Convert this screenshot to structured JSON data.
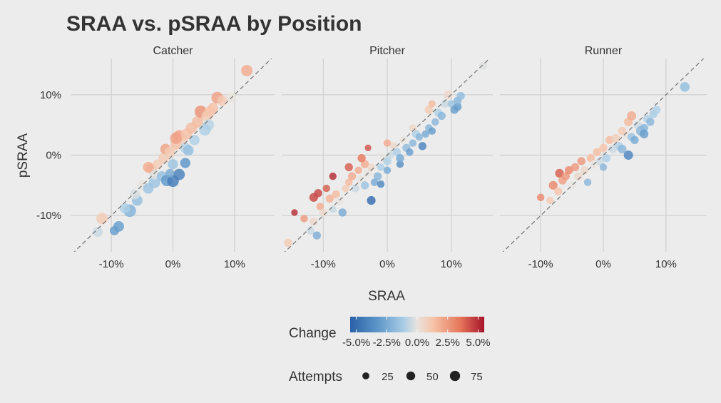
{
  "colors": {
    "background": "#ececec",
    "grid": "#cfcfcf",
    "text": "#333333",
    "diagonal": "#7a7a7a",
    "scale": [
      "#2a61a8",
      "#5c95c8",
      "#a9cde6",
      "#e8e3de",
      "#f6c2a6",
      "#e6765a",
      "#a6142b"
    ]
  },
  "chart_data": {
    "type": "scatter",
    "title": "SRAA vs. pSRAA by Position",
    "xlabel": "SRAA",
    "ylabel": "pSRAA",
    "xlim": [
      -0.165,
      0.165
    ],
    "ylim": [
      -0.16,
      0.16
    ],
    "xticks": [
      -0.1,
      0,
      0.1
    ],
    "yticks": [
      -0.1,
      0,
      0.1
    ],
    "x_tick_labels": [
      "-10%",
      "0%",
      "10%"
    ],
    "y_tick_labels": [
      "-10%",
      "0%",
      "10%"
    ],
    "reference_line": "y = x (dashed)",
    "grid": true,
    "legend": {
      "position": "bottom",
      "color_title": "Change",
      "color_range": [
        -0.055,
        0.055
      ],
      "color_tick_labels": [
        "-5.0%",
        "-2.5%",
        "0.0%",
        "2.5%",
        "5.0%"
      ],
      "color_tick_values": [
        -0.05,
        -0.025,
        0,
        0.025,
        0.05
      ],
      "size_title": "Attempts",
      "size_values": [
        25,
        50,
        75
      ],
      "size_labels": [
        "25",
        "50",
        "75"
      ]
    },
    "panels": [
      {
        "name": "Catcher",
        "points": [
          {
            "x": -0.115,
            "y": -0.105,
            "attempts": 55
          },
          {
            "x": -0.122,
            "y": -0.127,
            "attempts": 40
          },
          {
            "x": -0.095,
            "y": -0.125,
            "attempts": 30
          },
          {
            "x": -0.088,
            "y": -0.118,
            "attempts": 45
          },
          {
            "x": -0.07,
            "y": -0.092,
            "attempts": 70
          },
          {
            "x": -0.078,
            "y": -0.088,
            "attempts": 40
          },
          {
            "x": -0.058,
            "y": -0.075,
            "attempts": 45
          },
          {
            "x": -0.062,
            "y": -0.065,
            "attempts": 40
          },
          {
            "x": -0.05,
            "y": -0.05,
            "attempts": 35
          },
          {
            "x": -0.04,
            "y": -0.055,
            "attempts": 45
          },
          {
            "x": -0.03,
            "y": -0.045,
            "attempts": 55
          },
          {
            "x": -0.035,
            "y": -0.023,
            "attempts": 45
          },
          {
            "x": -0.03,
            "y": -0.032,
            "attempts": 40
          },
          {
            "x": -0.018,
            "y": -0.035,
            "attempts": 40
          },
          {
            "x": -0.01,
            "y": -0.042,
            "attempts": 55
          },
          {
            "x": 0.0,
            "y": -0.043,
            "attempts": 60
          },
          {
            "x": 0.01,
            "y": -0.032,
            "attempts": 55
          },
          {
            "x": -0.005,
            "y": -0.03,
            "attempts": 25
          },
          {
            "x": 0.02,
            "y": -0.013,
            "attempts": 40
          },
          {
            "x": -0.025,
            "y": -0.015,
            "attempts": 35
          },
          {
            "x": -0.015,
            "y": -0.005,
            "attempts": 45
          },
          {
            "x": -0.012,
            "y": 0.01,
            "attempts": 45
          },
          {
            "x": -0.005,
            "y": 0.005,
            "attempts": 45
          },
          {
            "x": 0.0,
            "y": -0.015,
            "attempts": 40
          },
          {
            "x": 0.005,
            "y": 0.018,
            "attempts": 50
          },
          {
            "x": 0.01,
            "y": 0.032,
            "attempts": 55
          },
          {
            "x": 0.015,
            "y": 0.025,
            "attempts": 45
          },
          {
            "x": 0.02,
            "y": 0.012,
            "attempts": 45
          },
          {
            "x": 0.025,
            "y": 0.008,
            "attempts": 45
          },
          {
            "x": 0.022,
            "y": 0.035,
            "attempts": 50
          },
          {
            "x": 0.03,
            "y": 0.045,
            "attempts": 50
          },
          {
            "x": 0.035,
            "y": 0.025,
            "attempts": 40
          },
          {
            "x": 0.04,
            "y": 0.055,
            "attempts": 55
          },
          {
            "x": 0.045,
            "y": 0.072,
            "attempts": 65
          },
          {
            "x": 0.055,
            "y": 0.065,
            "attempts": 45
          },
          {
            "x": 0.06,
            "y": 0.072,
            "attempts": 50
          },
          {
            "x": 0.058,
            "y": 0.05,
            "attempts": 50
          },
          {
            "x": 0.052,
            "y": 0.042,
            "attempts": 60
          },
          {
            "x": 0.065,
            "y": 0.078,
            "attempts": 45
          },
          {
            "x": 0.072,
            "y": 0.095,
            "attempts": 60
          },
          {
            "x": 0.08,
            "y": 0.09,
            "attempts": 40
          },
          {
            "x": 0.095,
            "y": 0.095,
            "attempts": 35
          },
          {
            "x": 0.12,
            "y": 0.14,
            "attempts": 55
          },
          {
            "x": 0.005,
            "y": 0.028,
            "attempts": 60
          },
          {
            "x": -0.04,
            "y": -0.02,
            "attempts": 45
          }
        ]
      },
      {
        "name": "Pitcher",
        "points": [
          {
            "x": -0.155,
            "y": -0.145,
            "attempts": 20
          },
          {
            "x": -0.145,
            "y": -0.095,
            "attempts": 10
          },
          {
            "x": -0.12,
            "y": -0.125,
            "attempts": 20
          },
          {
            "x": -0.115,
            "y": -0.11,
            "attempts": 20
          },
          {
            "x": -0.11,
            "y": -0.133,
            "attempts": 20
          },
          {
            "x": -0.115,
            "y": -0.07,
            "attempts": 25
          },
          {
            "x": -0.108,
            "y": -0.063,
            "attempts": 20
          },
          {
            "x": -0.105,
            "y": -0.085,
            "attempts": 15
          },
          {
            "x": -0.1,
            "y": -0.095,
            "attempts": 15
          },
          {
            "x": -0.095,
            "y": -0.055,
            "attempts": 15
          },
          {
            "x": -0.085,
            "y": -0.035,
            "attempts": 15
          },
          {
            "x": -0.09,
            "y": -0.072,
            "attempts": 20
          },
          {
            "x": -0.08,
            "y": -0.065,
            "attempts": 20
          },
          {
            "x": -0.085,
            "y": -0.09,
            "attempts": 15
          },
          {
            "x": -0.075,
            "y": -0.075,
            "attempts": 20
          },
          {
            "x": -0.07,
            "y": -0.095,
            "attempts": 20
          },
          {
            "x": -0.065,
            "y": -0.055,
            "attempts": 15
          },
          {
            "x": -0.06,
            "y": -0.045,
            "attempts": 15
          },
          {
            "x": -0.055,
            "y": -0.035,
            "attempts": 20
          },
          {
            "x": -0.05,
            "y": -0.055,
            "attempts": 20
          },
          {
            "x": -0.045,
            "y": -0.025,
            "attempts": 15
          },
          {
            "x": -0.04,
            "y": -0.04,
            "attempts": 20
          },
          {
            "x": -0.035,
            "y": -0.05,
            "attempts": 20
          },
          {
            "x": -0.035,
            "y": -0.015,
            "attempts": 20
          },
          {
            "x": -0.03,
            "y": 0.012,
            "attempts": 10
          },
          {
            "x": -0.03,
            "y": -0.03,
            "attempts": 20
          },
          {
            "x": -0.025,
            "y": -0.02,
            "attempts": 15
          },
          {
            "x": -0.025,
            "y": -0.075,
            "attempts": 25
          },
          {
            "x": -0.02,
            "y": -0.045,
            "attempts": 15
          },
          {
            "x": -0.015,
            "y": -0.035,
            "attempts": 20
          },
          {
            "x": -0.01,
            "y": -0.02,
            "attempts": 15
          },
          {
            "x": -0.01,
            "y": -0.048,
            "attempts": 15
          },
          {
            "x": -0.005,
            "y": -0.005,
            "attempts": 15
          },
          {
            "x": 0.0,
            "y": -0.01,
            "attempts": 20
          },
          {
            "x": 0.0,
            "y": -0.025,
            "attempts": 15
          },
          {
            "x": 0.005,
            "y": 0.0,
            "attempts": 15
          },
          {
            "x": 0.01,
            "y": 0.015,
            "attempts": 15
          },
          {
            "x": 0.015,
            "y": 0.005,
            "attempts": 20
          },
          {
            "x": 0.02,
            "y": -0.015,
            "attempts": 15
          },
          {
            "x": 0.02,
            "y": -0.005,
            "attempts": 20
          },
          {
            "x": 0.025,
            "y": 0.025,
            "attempts": 15
          },
          {
            "x": 0.03,
            "y": 0.012,
            "attempts": 20
          },
          {
            "x": 0.035,
            "y": 0.005,
            "attempts": 15
          },
          {
            "x": 0.04,
            "y": 0.02,
            "attempts": 15
          },
          {
            "x": 0.045,
            "y": 0.035,
            "attempts": 20
          },
          {
            "x": 0.05,
            "y": 0.03,
            "attempts": 15
          },
          {
            "x": 0.055,
            "y": 0.015,
            "attempts": 20
          },
          {
            "x": 0.06,
            "y": 0.035,
            "attempts": 15
          },
          {
            "x": 0.065,
            "y": 0.045,
            "attempts": 15
          },
          {
            "x": 0.065,
            "y": 0.075,
            "attempts": 20
          },
          {
            "x": 0.07,
            "y": 0.04,
            "attempts": 15
          },
          {
            "x": 0.075,
            "y": 0.055,
            "attempts": 15
          },
          {
            "x": 0.08,
            "y": 0.07,
            "attempts": 20
          },
          {
            "x": 0.085,
            "y": 0.065,
            "attempts": 20
          },
          {
            "x": 0.09,
            "y": 0.085,
            "attempts": 20
          },
          {
            "x": 0.095,
            "y": 0.1,
            "attempts": 25
          },
          {
            "x": 0.1,
            "y": 0.085,
            "attempts": 15
          },
          {
            "x": 0.105,
            "y": 0.075,
            "attempts": 20
          },
          {
            "x": 0.11,
            "y": 0.08,
            "attempts": 20
          },
          {
            "x": 0.11,
            "y": 0.09,
            "attempts": 20
          },
          {
            "x": 0.115,
            "y": 0.098,
            "attempts": 20
          },
          {
            "x": 0.15,
            "y": 0.148,
            "attempts": 20
          },
          {
            "x": -0.04,
            "y": -0.005,
            "attempts": 20
          },
          {
            "x": -0.06,
            "y": -0.02,
            "attempts": 20
          },
          {
            "x": 0.0,
            "y": 0.02,
            "attempts": 15
          },
          {
            "x": 0.04,
            "y": 0.045,
            "attempts": 15
          },
          {
            "x": 0.07,
            "y": 0.085,
            "attempts": 15
          },
          {
            "x": -0.13,
            "y": -0.105,
            "attempts": 15
          }
        ]
      },
      {
        "name": "Runner",
        "points": [
          {
            "x": -0.1,
            "y": -0.07,
            "attempts": 15
          },
          {
            "x": -0.085,
            "y": -0.075,
            "attempts": 15
          },
          {
            "x": -0.08,
            "y": -0.05,
            "attempts": 25
          },
          {
            "x": -0.072,
            "y": -0.06,
            "attempts": 20
          },
          {
            "x": -0.07,
            "y": -0.03,
            "attempts": 25
          },
          {
            "x": -0.065,
            "y": -0.042,
            "attempts": 20
          },
          {
            "x": -0.06,
            "y": -0.035,
            "attempts": 20
          },
          {
            "x": -0.055,
            "y": -0.025,
            "attempts": 20
          },
          {
            "x": -0.05,
            "y": -0.05,
            "attempts": 20
          },
          {
            "x": -0.045,
            "y": -0.02,
            "attempts": 20
          },
          {
            "x": -0.04,
            "y": -0.035,
            "attempts": 20
          },
          {
            "x": -0.035,
            "y": -0.01,
            "attempts": 20
          },
          {
            "x": -0.03,
            "y": -0.025,
            "attempts": 20
          },
          {
            "x": -0.025,
            "y": -0.045,
            "attempts": 15
          },
          {
            "x": -0.02,
            "y": -0.005,
            "attempts": 20
          },
          {
            "x": -0.015,
            "y": -0.015,
            "attempts": 20
          },
          {
            "x": -0.01,
            "y": 0.005,
            "attempts": 20
          },
          {
            "x": -0.005,
            "y": -0.01,
            "attempts": 20
          },
          {
            "x": 0.0,
            "y": 0.012,
            "attempts": 20
          },
          {
            "x": 0.005,
            "y": -0.005,
            "attempts": 20
          },
          {
            "x": 0.01,
            "y": 0.025,
            "attempts": 20
          },
          {
            "x": 0.015,
            "y": 0.01,
            "attempts": 20
          },
          {
            "x": 0.02,
            "y": 0.028,
            "attempts": 25
          },
          {
            "x": 0.025,
            "y": 0.015,
            "attempts": 20
          },
          {
            "x": 0.03,
            "y": 0.01,
            "attempts": 25
          },
          {
            "x": 0.035,
            "y": 0.035,
            "attempts": 20
          },
          {
            "x": 0.04,
            "y": 0.055,
            "attempts": 25
          },
          {
            "x": 0.04,
            "y": 0.0,
            "attempts": 30
          },
          {
            "x": 0.045,
            "y": 0.065,
            "attempts": 30
          },
          {
            "x": 0.045,
            "y": 0.03,
            "attempts": 20
          },
          {
            "x": 0.05,
            "y": 0.025,
            "attempts": 20
          },
          {
            "x": 0.055,
            "y": 0.05,
            "attempts": 20
          },
          {
            "x": 0.06,
            "y": 0.04,
            "attempts": 35
          },
          {
            "x": 0.065,
            "y": 0.045,
            "attempts": 20
          },
          {
            "x": 0.065,
            "y": 0.035,
            "attempts": 25
          },
          {
            "x": 0.07,
            "y": 0.06,
            "attempts": 20
          },
          {
            "x": 0.075,
            "y": 0.055,
            "attempts": 20
          },
          {
            "x": 0.08,
            "y": 0.068,
            "attempts": 20
          },
          {
            "x": 0.085,
            "y": 0.075,
            "attempts": 20
          },
          {
            "x": 0.13,
            "y": 0.113,
            "attempts": 35
          },
          {
            "x": 0.0,
            "y": -0.02,
            "attempts": 15
          },
          {
            "x": 0.03,
            "y": 0.04,
            "attempts": 20
          }
        ]
      }
    ]
  }
}
